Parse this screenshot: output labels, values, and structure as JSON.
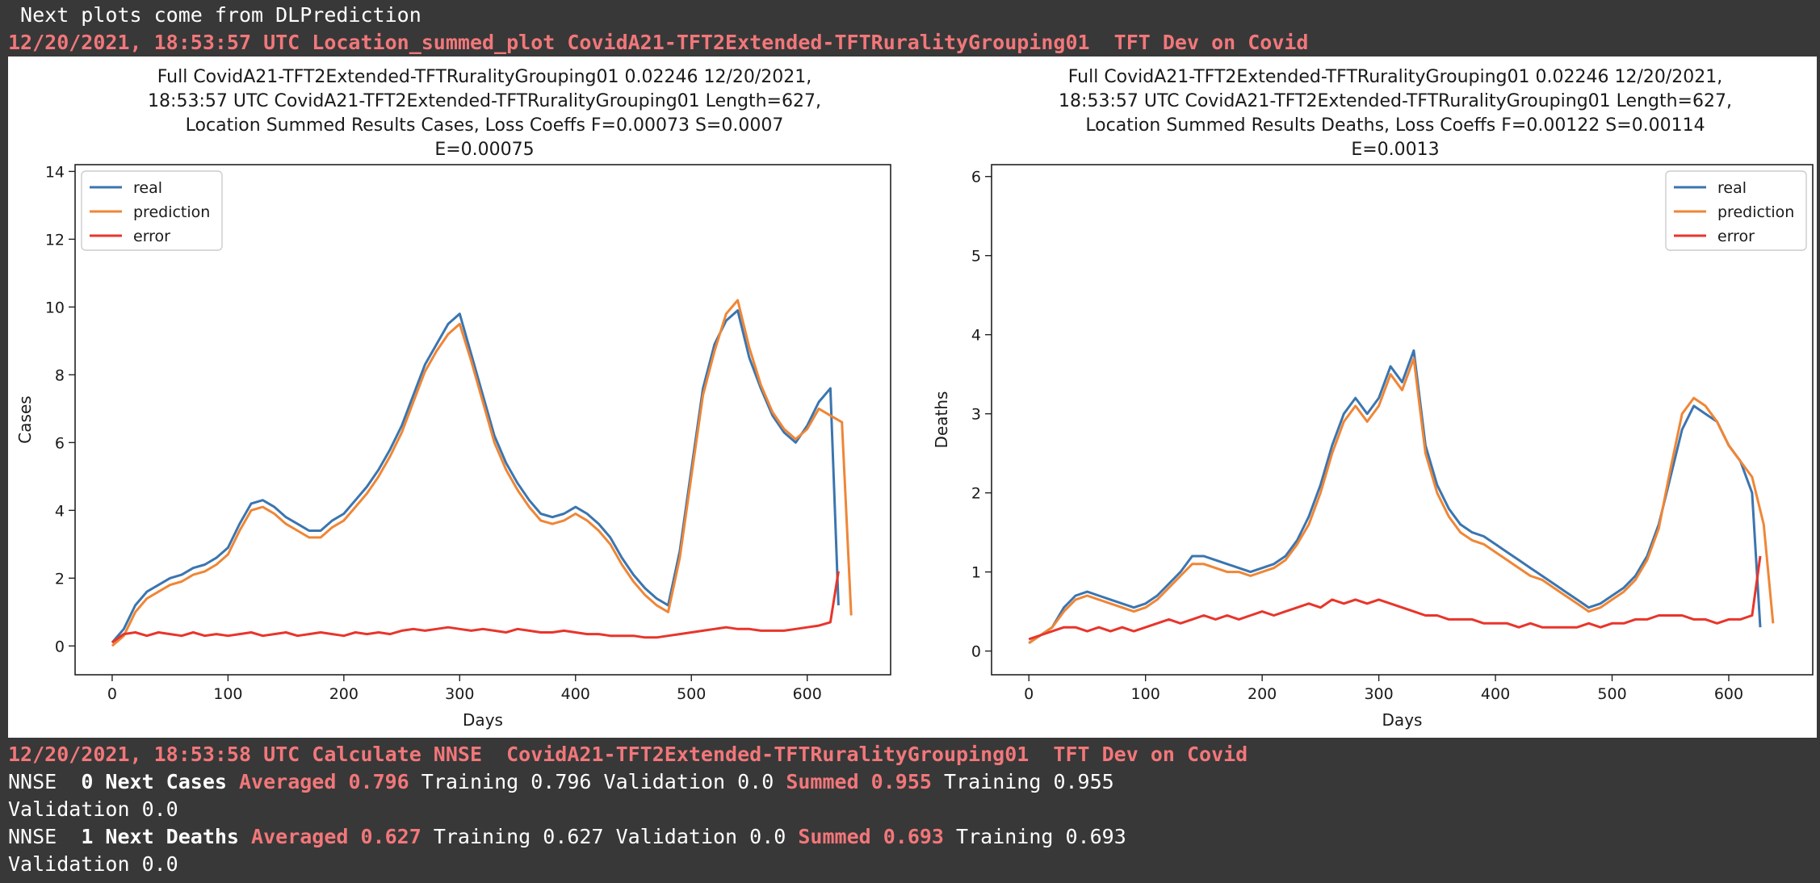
{
  "header": {
    "line1": " Next plots come from DLPrediction",
    "line2": "12/20/2021, 18:53:57 UTC Location_summed_plot CovidA21-TFT2Extended-TFTRuralityGrouping01  TFT Dev on Covid"
  },
  "nnse": {
    "calc_line": "12/20/2021, 18:53:58 UTC Calculate NNSE  CovidA21-TFT2Extended-TFTRuralityGrouping01  TFT Dev on Covid",
    "rows": [
      {
        "prefix": "NNSE  ",
        "label": "0 Next Cases",
        "averaged": "Averaged 0.796",
        "mid": " Training 0.796 Validation 0.0 ",
        "summed": "Summed 0.955",
        "tail": " Training 0.955",
        "validation": "Validation 0.0"
      },
      {
        "prefix": "NNSE  ",
        "label": "1 Next Deaths",
        "averaged": "Averaged 0.627",
        "mid": " Training 0.627 Validation 0.0 ",
        "summed": "Summed 0.693",
        "tail": " Training 0.693",
        "validation": "Validation 0.0"
      }
    ]
  },
  "colors": {
    "real": "#3b75af",
    "prediction": "#ef8636",
    "error": "#e8352b"
  },
  "chart_data": [
    {
      "type": "line",
      "title_lines": [
        "Full CovidA21-TFT2Extended-TFTRuralityGrouping01 0.02246 12/20/2021,",
        "18:53:57 UTC CovidA21-TFT2Extended-TFTRuralityGrouping01 Length=627,",
        "Location Summed Results Cases, Loss Coeffs F=0.00073 S=0.0007",
        "E=0.00075"
      ],
      "xlabel": "Days",
      "ylabel": "Cases",
      "xlim": [
        -32,
        672
      ],
      "ylim": [
        -0.85,
        14.2
      ],
      "xticks": [
        0,
        100,
        200,
        300,
        400,
        500,
        600
      ],
      "yticks": [
        0,
        2,
        4,
        6,
        8,
        10,
        12,
        14
      ],
      "legend_position": "top-left",
      "legend": [
        "real",
        "prediction",
        "error"
      ],
      "series": [
        {
          "name": "real",
          "x": [
            0,
            10,
            20,
            30,
            40,
            50,
            60,
            70,
            80,
            90,
            100,
            110,
            120,
            130,
            140,
            150,
            160,
            170,
            180,
            190,
            200,
            210,
            220,
            230,
            240,
            250,
            260,
            270,
            280,
            290,
            300,
            310,
            320,
            330,
            340,
            350,
            360,
            370,
            380,
            390,
            400,
            410,
            420,
            430,
            440,
            450,
            460,
            470,
            480,
            490,
            500,
            510,
            520,
            530,
            540,
            550,
            560,
            570,
            580,
            590,
            600,
            610,
            620,
            627
          ],
          "values": [
            0.1,
            0.5,
            1.2,
            1.6,
            1.8,
            2.0,
            2.1,
            2.3,
            2.4,
            2.6,
            2.9,
            3.6,
            4.2,
            4.3,
            4.1,
            3.8,
            3.6,
            3.4,
            3.4,
            3.7,
            3.9,
            4.3,
            4.7,
            5.2,
            5.8,
            6.5,
            7.4,
            8.3,
            8.9,
            9.5,
            9.8,
            8.6,
            7.4,
            6.2,
            5.4,
            4.8,
            4.3,
            3.9,
            3.8,
            3.9,
            4.1,
            3.9,
            3.6,
            3.2,
            2.6,
            2.1,
            1.7,
            1.4,
            1.2,
            2.8,
            5.2,
            7.6,
            8.9,
            9.6,
            9.9,
            8.5,
            7.6,
            6.8,
            6.3,
            6.0,
            6.5,
            7.2,
            7.6,
            1.2
          ]
        },
        {
          "name": "prediction",
          "x": [
            0,
            10,
            20,
            30,
            40,
            50,
            60,
            70,
            80,
            90,
            100,
            110,
            120,
            130,
            140,
            150,
            160,
            170,
            180,
            190,
            200,
            210,
            220,
            230,
            240,
            250,
            260,
            270,
            280,
            290,
            300,
            310,
            320,
            330,
            340,
            350,
            360,
            370,
            380,
            390,
            400,
            410,
            420,
            430,
            440,
            450,
            460,
            470,
            480,
            490,
            500,
            510,
            520,
            530,
            540,
            550,
            560,
            570,
            580,
            590,
            600,
            610,
            620,
            630,
            638
          ],
          "values": [
            0.0,
            0.3,
            1.0,
            1.4,
            1.6,
            1.8,
            1.9,
            2.1,
            2.2,
            2.4,
            2.7,
            3.4,
            4.0,
            4.1,
            3.9,
            3.6,
            3.4,
            3.2,
            3.2,
            3.5,
            3.7,
            4.1,
            4.5,
            5.0,
            5.6,
            6.3,
            7.2,
            8.1,
            8.7,
            9.2,
            9.5,
            8.4,
            7.2,
            6.0,
            5.2,
            4.6,
            4.1,
            3.7,
            3.6,
            3.7,
            3.9,
            3.7,
            3.4,
            3.0,
            2.4,
            1.9,
            1.5,
            1.2,
            1.0,
            2.6,
            5.0,
            7.4,
            8.7,
            9.8,
            10.2,
            8.8,
            7.7,
            6.9,
            6.4,
            6.1,
            6.4,
            7.0,
            6.8,
            6.6,
            0.9
          ]
        },
        {
          "name": "error",
          "x": [
            0,
            10,
            20,
            30,
            40,
            50,
            60,
            70,
            80,
            90,
            100,
            110,
            120,
            130,
            140,
            150,
            160,
            170,
            180,
            190,
            200,
            210,
            220,
            230,
            240,
            250,
            260,
            270,
            280,
            290,
            300,
            310,
            320,
            330,
            340,
            350,
            360,
            370,
            380,
            390,
            400,
            410,
            420,
            430,
            440,
            450,
            460,
            470,
            480,
            490,
            500,
            510,
            520,
            530,
            540,
            550,
            560,
            570,
            580,
            590,
            600,
            610,
            620,
            627
          ],
          "values": [
            0.1,
            0.35,
            0.4,
            0.3,
            0.4,
            0.35,
            0.3,
            0.4,
            0.3,
            0.35,
            0.3,
            0.35,
            0.4,
            0.3,
            0.35,
            0.4,
            0.3,
            0.35,
            0.4,
            0.35,
            0.3,
            0.4,
            0.35,
            0.4,
            0.35,
            0.45,
            0.5,
            0.45,
            0.5,
            0.55,
            0.5,
            0.45,
            0.5,
            0.45,
            0.4,
            0.5,
            0.45,
            0.4,
            0.4,
            0.45,
            0.4,
            0.35,
            0.35,
            0.3,
            0.3,
            0.3,
            0.25,
            0.25,
            0.3,
            0.35,
            0.4,
            0.45,
            0.5,
            0.55,
            0.5,
            0.5,
            0.45,
            0.45,
            0.45,
            0.5,
            0.55,
            0.6,
            0.7,
            2.2
          ]
        }
      ]
    },
    {
      "type": "line",
      "title_lines": [
        "Full CovidA21-TFT2Extended-TFTRuralityGrouping01 0.02246 12/20/2021,",
        "18:53:57 UTC CovidA21-TFT2Extended-TFTRuralityGrouping01 Length=627,",
        "Location Summed Results Deaths, Loss Coeffs F=0.00122 S=0.00114",
        "E=0.0013"
      ],
      "xlabel": "Days",
      "ylabel": "Deaths",
      "xlim": [
        -32,
        672
      ],
      "ylim": [
        -0.3,
        6.15
      ],
      "xticks": [
        0,
        100,
        200,
        300,
        400,
        500,
        600
      ],
      "yticks": [
        0,
        1,
        2,
        3,
        4,
        5,
        6
      ],
      "legend_position": "top-right",
      "legend": [
        "real",
        "prediction",
        "error"
      ],
      "series": [
        {
          "name": "real",
          "x": [
            0,
            10,
            20,
            30,
            40,
            50,
            60,
            70,
            80,
            90,
            100,
            110,
            120,
            130,
            140,
            150,
            160,
            170,
            180,
            190,
            200,
            210,
            220,
            230,
            240,
            250,
            260,
            270,
            280,
            290,
            300,
            310,
            320,
            330,
            340,
            350,
            360,
            370,
            380,
            390,
            400,
            410,
            420,
            430,
            440,
            450,
            460,
            470,
            480,
            490,
            500,
            510,
            520,
            530,
            540,
            550,
            560,
            570,
            580,
            590,
            600,
            610,
            620,
            627
          ],
          "values": [
            0.1,
            0.2,
            0.3,
            0.55,
            0.7,
            0.75,
            0.7,
            0.65,
            0.6,
            0.55,
            0.6,
            0.7,
            0.85,
            1.0,
            1.2,
            1.2,
            1.15,
            1.1,
            1.05,
            1.0,
            1.05,
            1.1,
            1.2,
            1.4,
            1.7,
            2.1,
            2.6,
            3.0,
            3.2,
            3.0,
            3.2,
            3.6,
            3.4,
            3.8,
            2.6,
            2.1,
            1.8,
            1.6,
            1.5,
            1.45,
            1.35,
            1.25,
            1.15,
            1.05,
            0.95,
            0.85,
            0.75,
            0.65,
            0.55,
            0.6,
            0.7,
            0.8,
            0.95,
            1.2,
            1.6,
            2.2,
            2.8,
            3.1,
            3.0,
            2.9,
            2.6,
            2.4,
            2.0,
            0.3
          ]
        },
        {
          "name": "prediction",
          "x": [
            0,
            10,
            20,
            30,
            40,
            50,
            60,
            70,
            80,
            90,
            100,
            110,
            120,
            130,
            140,
            150,
            160,
            170,
            180,
            190,
            200,
            210,
            220,
            230,
            240,
            250,
            260,
            270,
            280,
            290,
            300,
            310,
            320,
            330,
            340,
            350,
            360,
            370,
            380,
            390,
            400,
            410,
            420,
            430,
            440,
            450,
            460,
            470,
            480,
            490,
            500,
            510,
            520,
            530,
            540,
            550,
            560,
            570,
            580,
            590,
            600,
            610,
            620,
            630,
            638
          ],
          "values": [
            0.1,
            0.2,
            0.3,
            0.5,
            0.65,
            0.7,
            0.65,
            0.6,
            0.55,
            0.5,
            0.55,
            0.65,
            0.8,
            0.95,
            1.1,
            1.1,
            1.05,
            1.0,
            1.0,
            0.95,
            1.0,
            1.05,
            1.15,
            1.35,
            1.6,
            2.0,
            2.5,
            2.9,
            3.1,
            2.9,
            3.1,
            3.5,
            3.3,
            3.7,
            2.5,
            2.0,
            1.7,
            1.5,
            1.4,
            1.35,
            1.25,
            1.15,
            1.05,
            0.95,
            0.9,
            0.8,
            0.7,
            0.6,
            0.5,
            0.55,
            0.65,
            0.75,
            0.9,
            1.15,
            1.55,
            2.3,
            3.0,
            3.2,
            3.1,
            2.9,
            2.6,
            2.4,
            2.2,
            1.6,
            0.35
          ]
        },
        {
          "name": "error",
          "x": [
            0,
            10,
            20,
            30,
            40,
            50,
            60,
            70,
            80,
            90,
            100,
            110,
            120,
            130,
            140,
            150,
            160,
            170,
            180,
            190,
            200,
            210,
            220,
            230,
            240,
            250,
            260,
            270,
            280,
            290,
            300,
            310,
            320,
            330,
            340,
            350,
            360,
            370,
            380,
            390,
            400,
            410,
            420,
            430,
            440,
            450,
            460,
            470,
            480,
            490,
            500,
            510,
            520,
            530,
            540,
            550,
            560,
            570,
            580,
            590,
            600,
            610,
            620,
            627
          ],
          "values": [
            0.15,
            0.2,
            0.25,
            0.3,
            0.3,
            0.25,
            0.3,
            0.25,
            0.3,
            0.25,
            0.3,
            0.35,
            0.4,
            0.35,
            0.4,
            0.45,
            0.4,
            0.45,
            0.4,
            0.45,
            0.5,
            0.45,
            0.5,
            0.55,
            0.6,
            0.55,
            0.65,
            0.6,
            0.65,
            0.6,
            0.65,
            0.6,
            0.55,
            0.5,
            0.45,
            0.45,
            0.4,
            0.4,
            0.4,
            0.35,
            0.35,
            0.35,
            0.3,
            0.35,
            0.3,
            0.3,
            0.3,
            0.3,
            0.35,
            0.3,
            0.35,
            0.35,
            0.4,
            0.4,
            0.45,
            0.45,
            0.45,
            0.4,
            0.4,
            0.35,
            0.4,
            0.4,
            0.45,
            1.2
          ]
        }
      ]
    }
  ]
}
